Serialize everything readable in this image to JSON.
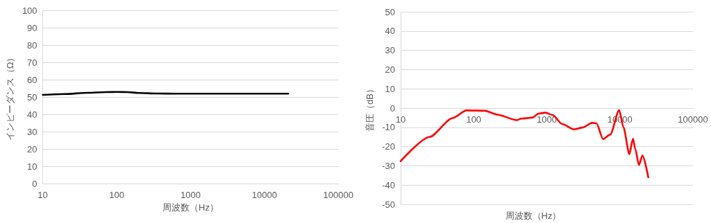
{
  "chart_data": [
    {
      "type": "line",
      "xlabel": "周波数（Hz）",
      "ylabel": "インピーダンス（Ω）",
      "log": "x",
      "xlim": [
        10,
        100000
      ],
      "xticks": [
        10,
        100,
        1000,
        10000,
        100000
      ],
      "ylim": [
        0,
        100
      ],
      "yticks": [
        0,
        10,
        20,
        30,
        40,
        50,
        60,
        70,
        80,
        90,
        100
      ],
      "grid": "y",
      "marker": "none",
      "line_style": "solid",
      "series": [
        {
          "color": "#000000",
          "x": [
            10,
            20,
            40,
            70,
            100,
            140,
            200,
            350,
            600,
            1000,
            3000,
            10000,
            21000
          ],
          "values": [
            51.2,
            51.7,
            52.4,
            52.8,
            52.9,
            52.8,
            52.3,
            52,
            51.9,
            51.9,
            51.9,
            51.9,
            51.9
          ]
        }
      ]
    },
    {
      "type": "line",
      "xlabel": "周波数（Hz）",
      "ylabel": "音圧（dB）",
      "log": "x",
      "xlim": [
        10,
        100000
      ],
      "xticks": [
        10,
        100,
        1000,
        10000,
        100000
      ],
      "ylim": [
        -50,
        50
      ],
      "yticks": [
        -50,
        -40,
        -30,
        -20,
        -10,
        0,
        10,
        20,
        30,
        40,
        50
      ],
      "grid": "y",
      "marker": "none",
      "line_style": "solid",
      "series": [
        {
          "color": "#ff0000",
          "x": [
            10,
            25,
            51,
            80,
            141,
            214,
            389,
            447,
            630,
            776,
            955,
            1200,
            1620,
            2340,
            3100,
            4170,
            4790,
            5890,
            7410,
            9770,
            11220,
            13490,
            15100,
            16200,
            18200,
            20400,
            24500
          ],
          "values": [
            -27.6,
            -15,
            -5.3,
            -1.2,
            -1.4,
            -3.5,
            -6.3,
            -5.5,
            -5,
            -2.9,
            -2.4,
            -3.6,
            -8.3,
            -11.1,
            -10.1,
            -7.7,
            -8,
            -16.1,
            -13.7,
            -1.1,
            -10.1,
            -24,
            -15.9,
            -21,
            -29.6,
            -24.6,
            -36
          ]
        }
      ]
    }
  ]
}
